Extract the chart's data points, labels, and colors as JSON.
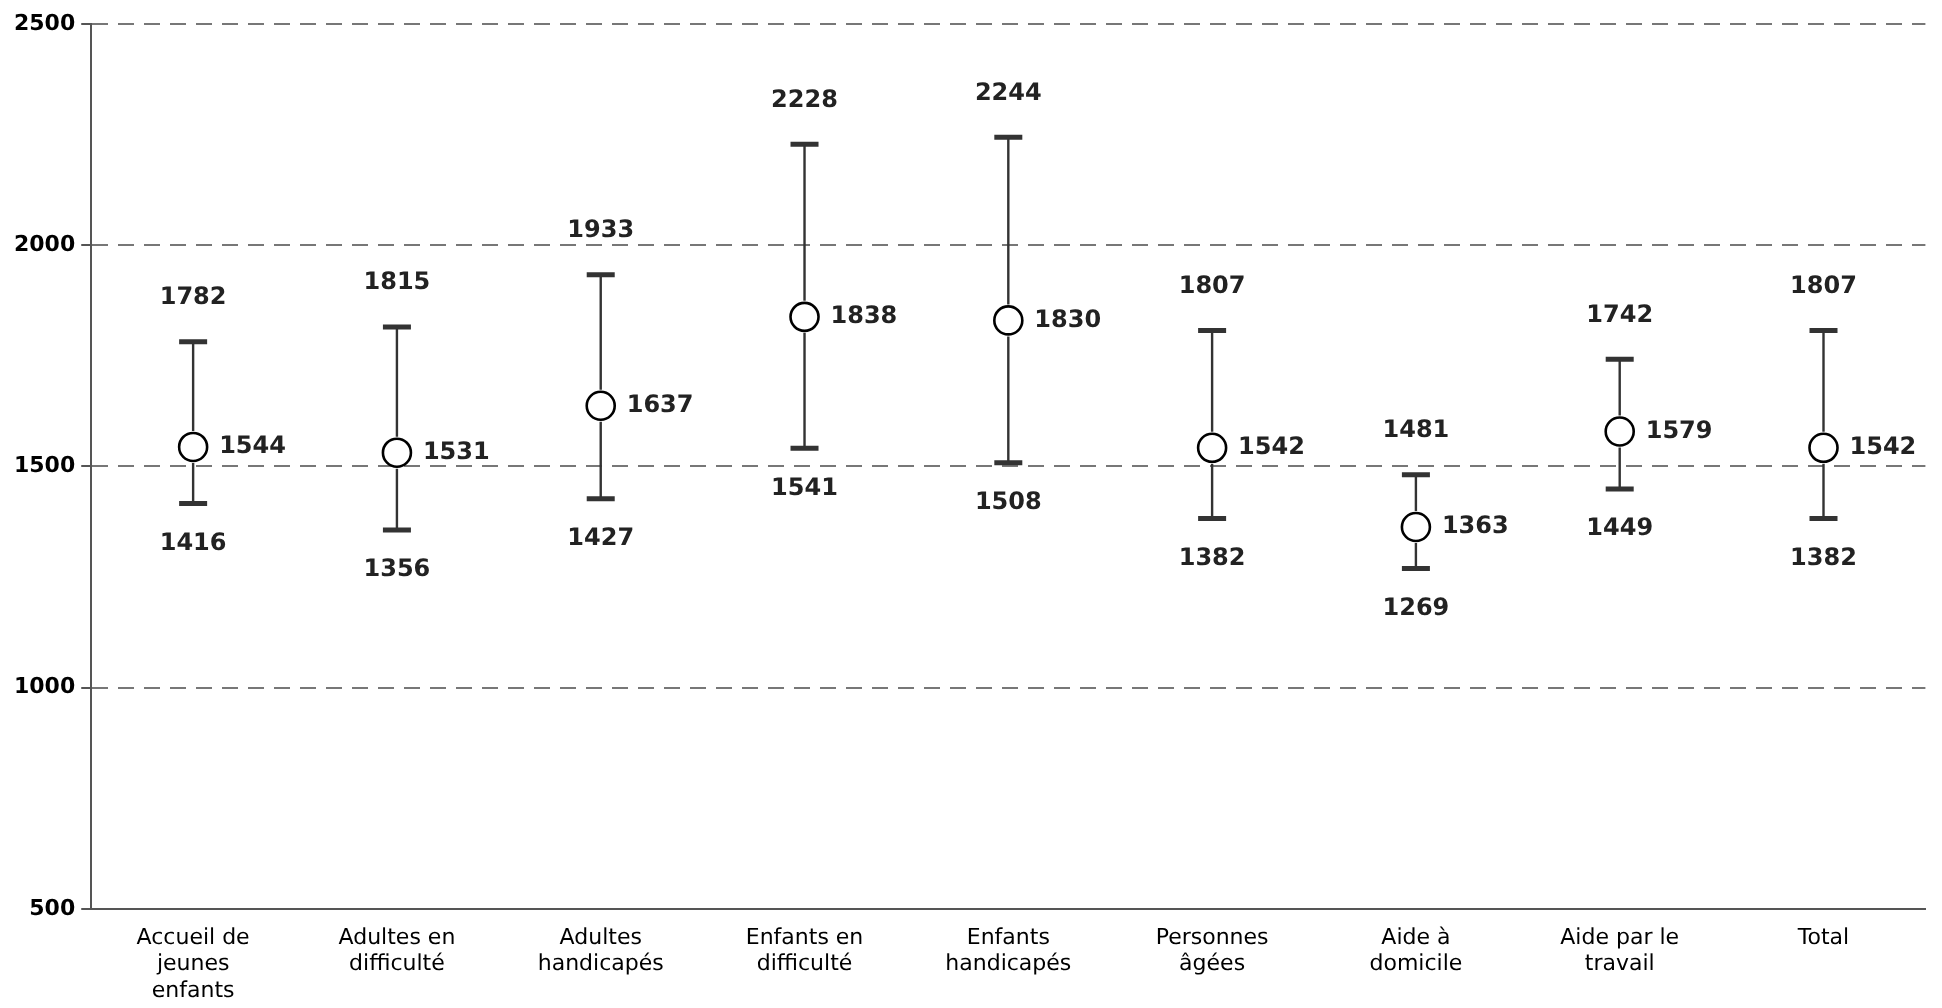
{
  "chart_data": {
    "type": "scatter",
    "categories": [
      "Accueil de jeunes enfants",
      "Adultes en difficulté",
      "Adultes handicapés",
      "Enfants en difficulté",
      "Enfants handicapés",
      "Personnes âgées",
      "Aide à domicile",
      "Aide par le travail",
      "Total"
    ],
    "series": [
      {
        "color": "#000000",
        "values": [
          1544,
          1531,
          1637,
          1838,
          1830,
          1542,
          1363,
          1579,
          1542
        ],
        "errors": [
          [
            1416,
            1782
          ],
          [
            1356,
            1815
          ],
          [
            1427,
            1933
          ],
          [
            1541,
            2228
          ],
          [
            1508,
            2244
          ],
          [
            1382,
            1807
          ],
          [
            1269,
            1481
          ],
          [
            1449,
            1742
          ],
          [
            1382,
            1807
          ]
        ]
      }
    ],
    "annotations": [
      {
        "text": "1782",
        "x": "Accueil de jeunes enfants",
        "y": 1782
      },
      {
        "text": "1416",
        "x": "Accueil de jeunes enfants",
        "y": 1416
      },
      {
        "text": "1815",
        "x": "Adultes en difficulté",
        "y": 1815
      },
      {
        "text": "1356",
        "x": "Adultes en difficulté",
        "y": 1356
      },
      {
        "text": "1933",
        "x": "Adultes handicapés",
        "y": 1933
      },
      {
        "text": "1427",
        "x": "Adultes handicapés",
        "y": 1427
      },
      {
        "text": "2228",
        "x": "Enfants en difficulté",
        "y": 2228
      },
      {
        "text": "1541",
        "x": "Enfants en difficulté",
        "y": 1541
      },
      {
        "text": "2244",
        "x": "Enfants handicapés",
        "y": 2244
      },
      {
        "text": "1508",
        "x": "Enfants handicapés",
        "y": 1508
      },
      {
        "text": "1807",
        "x": "Personnes âgées",
        "y": 1807
      },
      {
        "text": "1382",
        "x": "Personnes âgées",
        "y": 1382
      },
      {
        "text": "1481",
        "x": "Aide à domicile",
        "y": 1481
      },
      {
        "text": "1269",
        "x": "Aide à domicile",
        "y": 1269
      },
      {
        "text": "1742",
        "x": "Aide par le travail",
        "y": 1742
      },
      {
        "text": "1449",
        "x": "Aide par le travail",
        "y": 1449
      },
      {
        "text": "1807",
        "x": "Total",
        "y": 1807
      },
      {
        "text": "1382",
        "x": "Total",
        "y": 1382
      }
    ],
    "ylim": [
      500,
      2500
    ],
    "yticks": [
      500,
      1000,
      1500,
      2000,
      2500
    ],
    "grid": "y",
    "legend": false,
    "marker": "circle",
    "data_labels": true
  }
}
